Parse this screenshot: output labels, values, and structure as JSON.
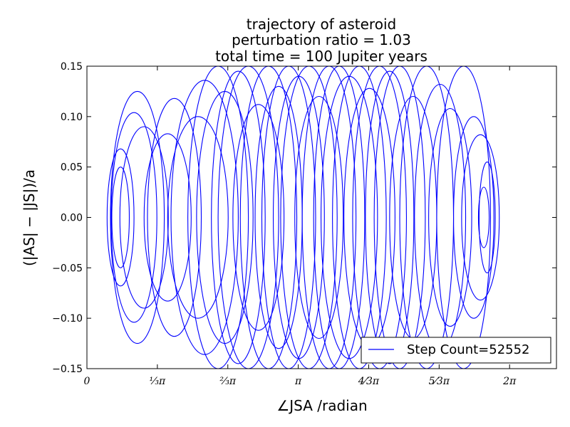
{
  "chart_data": {
    "type": "line",
    "title_lines": [
      "trajectory of asteroid",
      "perturbation ratio = 1.03",
      "total time = 100 Jupiter years"
    ],
    "xlabel": "∠JSA /radian",
    "ylabel": "(|AS| − |JS|)/a",
    "xlim": [
      0,
      6.98
    ],
    "ylim": [
      -0.15,
      0.15
    ],
    "x_ticks": [
      {
        "value": 0,
        "label": "0"
      },
      {
        "value": 1.0472,
        "label": "⅓π"
      },
      {
        "value": 2.0944,
        "label": "⅔π"
      },
      {
        "value": 3.1416,
        "label": "π"
      },
      {
        "value": 4.1888,
        "label": "4⁄3π"
      },
      {
        "value": 5.236,
        "label": "5⁄3π"
      },
      {
        "value": 6.2832,
        "label": "2π"
      }
    ],
    "y_ticks": [
      {
        "value": 0.15,
        "label": "0.15"
      },
      {
        "value": 0.1,
        "label": "0.10"
      },
      {
        "value": 0.05,
        "label": "0.05"
      },
      {
        "value": 0.0,
        "label": "0.00"
      },
      {
        "value": -0.05,
        "label": "−0.05"
      },
      {
        "value": -0.1,
        "label": "−0.10"
      },
      {
        "value": -0.15,
        "label": "−0.15"
      }
    ],
    "legend": {
      "position": "lower-right",
      "label": "Step Count=52552"
    },
    "series_color": "#0000ff",
    "loops": [
      {
        "cx": 0.5,
        "ry": 0.05,
        "rx": 0.13
      },
      {
        "cx": 0.5,
        "ry": 0.068,
        "rx": 0.2
      },
      {
        "cx": 0.7,
        "ry": 0.104,
        "rx": 0.34
      },
      {
        "cx": 0.75,
        "ry": 0.125,
        "rx": 0.4
      },
      {
        "cx": 0.85,
        "ry": 0.09,
        "rx": 0.36
      },
      {
        "cx": 1.2,
        "ry": 0.083,
        "rx": 0.35
      },
      {
        "cx": 1.3,
        "ry": 0.118,
        "rx": 0.4
      },
      {
        "cx": 1.65,
        "ry": 0.1,
        "rx": 0.45
      },
      {
        "cx": 1.75,
        "ry": 0.136,
        "rx": 0.5
      },
      {
        "cx": 1.95,
        "ry": 0.15,
        "rx": 0.45
      },
      {
        "cx": 2.05,
        "ry": 0.125,
        "rx": 0.42
      },
      {
        "cx": 2.25,
        "ry": 0.145,
        "rx": 0.4
      },
      {
        "cx": 2.4,
        "ry": 0.15,
        "rx": 0.45
      },
      {
        "cx": 2.55,
        "ry": 0.112,
        "rx": 0.38
      },
      {
        "cx": 2.7,
        "ry": 0.15,
        "rx": 0.42
      },
      {
        "cx": 2.85,
        "ry": 0.13,
        "rx": 0.35
      },
      {
        "cx": 3.0,
        "ry": 0.15,
        "rx": 0.4
      },
      {
        "cx": 3.15,
        "ry": 0.14,
        "rx": 0.38
      },
      {
        "cx": 3.3,
        "ry": 0.15,
        "rx": 0.42
      },
      {
        "cx": 3.45,
        "ry": 0.12,
        "rx": 0.36
      },
      {
        "cx": 3.6,
        "ry": 0.15,
        "rx": 0.4
      },
      {
        "cx": 3.75,
        "ry": 0.15,
        "rx": 0.38
      },
      {
        "cx": 3.9,
        "ry": 0.14,
        "rx": 0.42
      },
      {
        "cx": 4.05,
        "ry": 0.15,
        "rx": 0.4
      },
      {
        "cx": 4.2,
        "ry": 0.128,
        "rx": 0.38
      },
      {
        "cx": 4.35,
        "ry": 0.15,
        "rx": 0.4
      },
      {
        "cx": 4.5,
        "ry": 0.145,
        "rx": 0.36
      },
      {
        "cx": 4.65,
        "ry": 0.15,
        "rx": 0.38
      },
      {
        "cx": 4.85,
        "ry": 0.12,
        "rx": 0.35
      },
      {
        "cx": 5.05,
        "ry": 0.15,
        "rx": 0.4
      },
      {
        "cx": 5.25,
        "ry": 0.132,
        "rx": 0.38
      },
      {
        "cx": 5.4,
        "ry": 0.108,
        "rx": 0.32
      },
      {
        "cx": 5.6,
        "ry": 0.15,
        "rx": 0.4
      },
      {
        "cx": 5.75,
        "ry": 0.1,
        "rx": 0.3
      },
      {
        "cx": 5.85,
        "ry": 0.082,
        "rx": 0.28
      },
      {
        "cx": 5.95,
        "ry": 0.055,
        "rx": 0.12
      },
      {
        "cx": 5.9,
        "ry": 0.03,
        "rx": 0.08
      }
    ]
  }
}
